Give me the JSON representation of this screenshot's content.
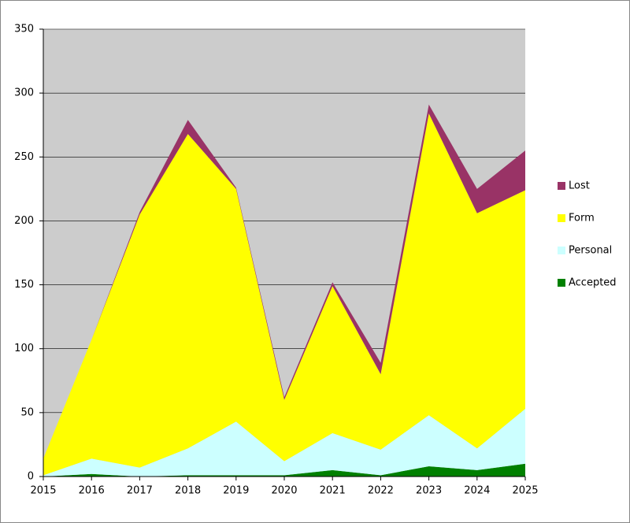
{
  "chart_data": {
    "type": "stacked_area",
    "categories": [
      "2015",
      "2016",
      "2017",
      "2018",
      "2019",
      "2020",
      "2021",
      "2022",
      "2023",
      "2024",
      "2025"
    ],
    "series": [
      {
        "name": "Accepted",
        "color": "#008000",
        "values": [
          0,
          2,
          0,
          1,
          1,
          1,
          5,
          1,
          8,
          5,
          10
        ]
      },
      {
        "name": "Personal",
        "color": "#ccffff",
        "values": [
          1,
          12,
          7,
          21,
          42,
          11,
          29,
          20,
          40,
          17,
          43
        ]
      },
      {
        "name": "Form",
        "color": "#ffff00",
        "values": [
          13,
          93,
          198,
          246,
          182,
          48,
          115,
          59,
          236,
          184,
          171
        ]
      },
      {
        "name": "Lost",
        "color": "#993366",
        "values": [
          0,
          0,
          2,
          11,
          1,
          2,
          3,
          9,
          7,
          19,
          31
        ]
      }
    ],
    "ylim": [
      0,
      350
    ],
    "yticks": [
      0,
      50,
      100,
      150,
      200,
      250,
      300,
      350
    ],
    "grid": true
  }
}
